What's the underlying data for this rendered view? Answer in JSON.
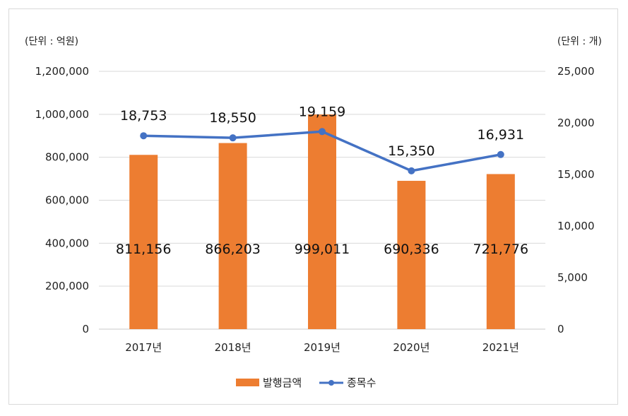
{
  "chart_data": {
    "type": "bar",
    "categories": [
      "2017년",
      "2018년",
      "2019년",
      "2020년",
      "2021년"
    ],
    "series": [
      {
        "name": "발행금액",
        "type": "bar",
        "axis": "left",
        "color": "#ED7D31",
        "values": [
          811156,
          866203,
          999011,
          690336,
          721776
        ],
        "labels": [
          "811,156",
          "866,203",
          "999,011",
          "690,336",
          "721,776"
        ]
      },
      {
        "name": "종목수",
        "type": "line",
        "axis": "right",
        "color": "#4472C4",
        "values": [
          18753,
          18550,
          19159,
          15350,
          16931
        ],
        "labels": [
          "18,753",
          "18,550",
          "19,159",
          "15,350",
          "16,931"
        ]
      }
    ],
    "left_axis": {
      "unit_label": "(단위 : 억원)",
      "ylim": [
        0,
        1200000
      ],
      "ticks": [
        "0",
        "200,000",
        "400,000",
        "600,000",
        "800,000",
        "1,000,000",
        "1,200,000"
      ]
    },
    "right_axis": {
      "unit_label": "(단위 : 개)",
      "ylim": [
        0,
        25000
      ],
      "ticks": [
        "0",
        "5,000",
        "10,000",
        "15,000",
        "20,000",
        "25,000"
      ]
    },
    "grid": true,
    "legend_position": "bottom"
  }
}
